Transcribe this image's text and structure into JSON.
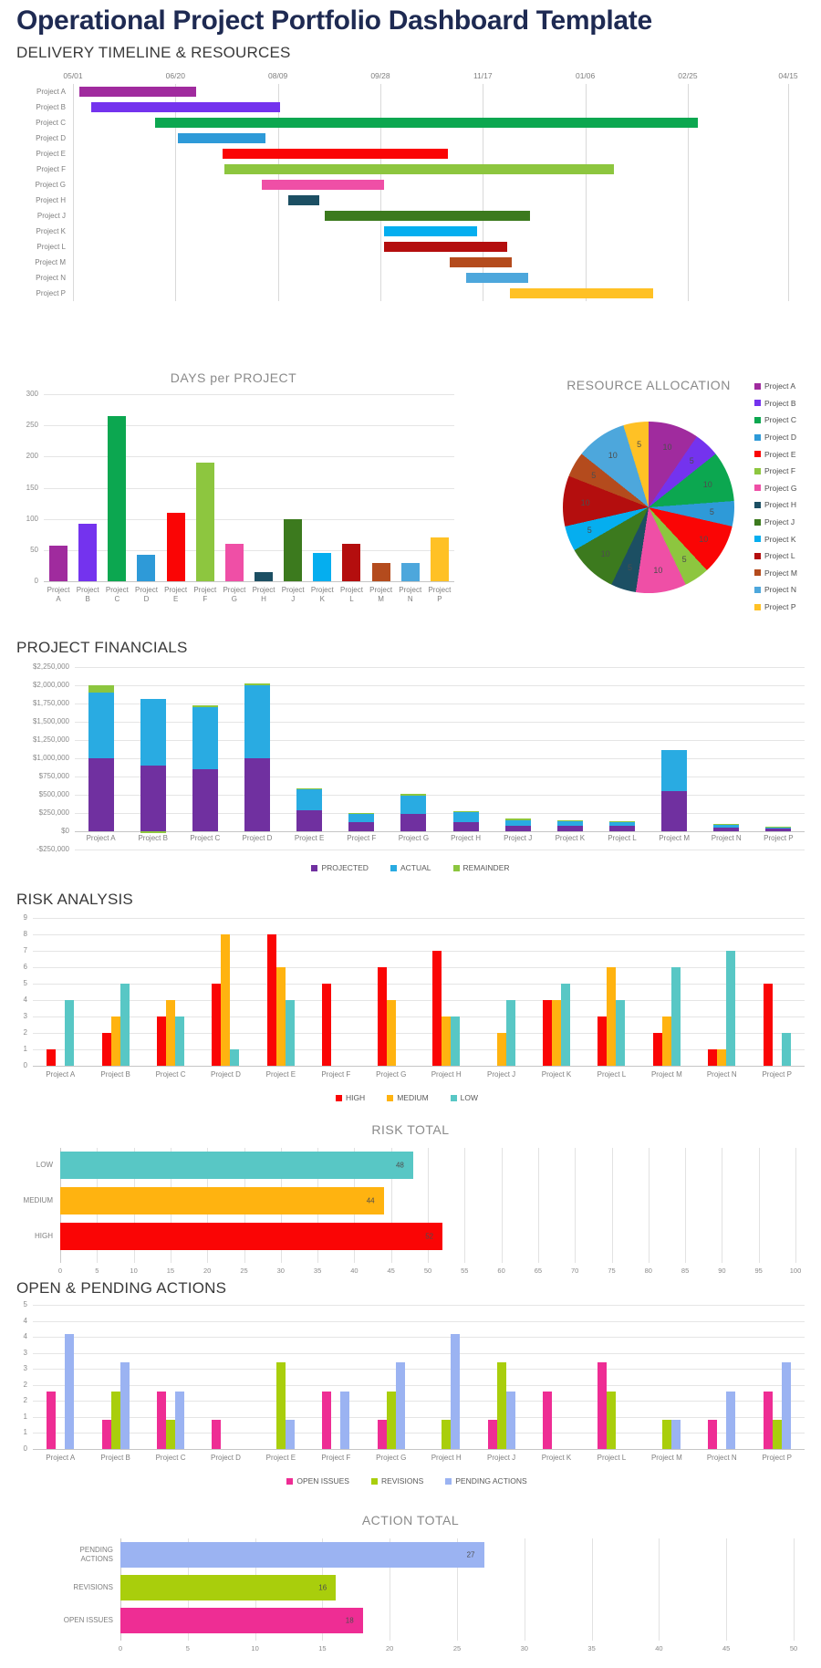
{
  "title": "Operational Project Portfolio Dashboard Template",
  "sections": {
    "delivery": {
      "heading": "DELIVERY TIMELINE & RESOURCES"
    },
    "financials": {
      "heading": "PROJECT FINANCIALS"
    },
    "risk": {
      "heading": "RISK ANALYSIS"
    },
    "actions": {
      "heading": "OPEN & PENDING ACTIONS"
    }
  },
  "palette": [
    "#A02B9E",
    "#7433EE",
    "#0CA750",
    "#2E9AD8",
    "#FA0505",
    "#8DC63F",
    "#EF4FA6",
    "#1C4F63",
    "#3C7A1E",
    "#05AEEF",
    "#B40E0E",
    "#B44B1D",
    "#4DA7DC",
    "#FFC125"
  ],
  "chart_data": [
    {
      "type": "gantt",
      "name": "delivery_timeline",
      "axis_dates": [
        "05/01",
        "06/20",
        "08/09",
        "09/28",
        "11/17",
        "01/06",
        "02/25",
        "04/15"
      ],
      "tick_days": [
        0,
        50,
        100,
        150,
        200,
        250,
        300,
        349
      ],
      "total_days": 357,
      "projects": [
        {
          "name": "Project A",
          "color": "#A02B9E",
          "start_day": 3,
          "duration_days": 57
        },
        {
          "name": "Project B",
          "color": "#7433EE",
          "start_day": 9,
          "duration_days": 92
        },
        {
          "name": "Project C",
          "color": "#0CA750",
          "start_day": 40,
          "duration_days": 265
        },
        {
          "name": "Project D",
          "color": "#2E9AD8",
          "start_day": 51,
          "duration_days": 43
        },
        {
          "name": "Project E",
          "color": "#FA0505",
          "start_day": 73,
          "duration_days": 110
        },
        {
          "name": "Project F",
          "color": "#8DC63F",
          "start_day": 74,
          "duration_days": 190
        },
        {
          "name": "Project G",
          "color": "#EF4FA6",
          "start_day": 92,
          "duration_days": 60
        },
        {
          "name": "Project H",
          "color": "#1C4F63",
          "start_day": 105,
          "duration_days": 15
        },
        {
          "name": "Project J",
          "color": "#3C7A1E",
          "start_day": 123,
          "duration_days": 100
        },
        {
          "name": "Project K",
          "color": "#05AEEF",
          "start_day": 152,
          "duration_days": 45
        },
        {
          "name": "Project L",
          "color": "#B40E0E",
          "start_day": 152,
          "duration_days": 60
        },
        {
          "name": "Project M",
          "color": "#B44B1D",
          "start_day": 184,
          "duration_days": 30
        },
        {
          "name": "Project N",
          "color": "#4DA7DC",
          "start_day": 192,
          "duration_days": 30
        },
        {
          "name": "Project P",
          "color": "#FFC125",
          "start_day": 213,
          "duration_days": 70
        }
      ]
    },
    {
      "type": "bar",
      "name": "days_per_project",
      "title": "DAYS per PROJECT",
      "categories": [
        "Project A",
        "Project B",
        "Project C",
        "Project D",
        "Project E",
        "Project F",
        "Project G",
        "Project H",
        "Project J",
        "Project K",
        "Project L",
        "Project M",
        "Project N",
        "Project P"
      ],
      "values": [
        57,
        92,
        265,
        43,
        110,
        190,
        60,
        15,
        100,
        45,
        60,
        30,
        30,
        70
      ],
      "colors": [
        "#A02B9E",
        "#7433EE",
        "#0CA750",
        "#2E9AD8",
        "#FA0505",
        "#8DC63F",
        "#EF4FA6",
        "#1C4F63",
        "#3C7A1E",
        "#05AEEF",
        "#B40E0E",
        "#B44B1D",
        "#4DA7DC",
        "#FFC125"
      ],
      "ylim": [
        0,
        300
      ],
      "ytick_step": 50,
      "grid": true
    },
    {
      "type": "pie",
      "name": "resource_allocation",
      "title": "RESOURCE ALLOCATION",
      "labels": [
        "Project A",
        "Project B",
        "Project C",
        "Project D",
        "Project E",
        "Project F",
        "Project G",
        "Project H",
        "Project J",
        "Project K",
        "Project L",
        "Project M",
        "Project N",
        "Project P"
      ],
      "values": [
        10,
        5,
        10,
        5,
        10,
        5,
        10,
        5,
        10,
        5,
        10,
        5,
        10,
        5
      ],
      "colors": [
        "#A02B9E",
        "#7433EE",
        "#0CA750",
        "#2E9AD8",
        "#FA0505",
        "#8DC63F",
        "#EF4FA6",
        "#1C4F63",
        "#3C7A1E",
        "#05AEEF",
        "#B40E0E",
        "#B44B1D",
        "#4DA7DC",
        "#FFC125"
      ],
      "legend_position": "right"
    },
    {
      "type": "stacked-bar",
      "name": "project_financials",
      "categories": [
        "Project A",
        "Project B",
        "Project C",
        "Project D",
        "Project E",
        "Project F",
        "Project G",
        "Project H",
        "Project J",
        "Project K",
        "Project L",
        "Project M",
        "Project N",
        "Project P"
      ],
      "series": [
        {
          "name": "PROJECTED",
          "color": "#7030A0",
          "values": [
            1000000,
            900000,
            850000,
            1000000,
            290000,
            130000,
            240000,
            120000,
            80000,
            75000,
            70000,
            550000,
            50000,
            40000
          ]
        },
        {
          "name": "ACTUAL",
          "color": "#29ABE2",
          "values": [
            900000,
            910000,
            850000,
            1000000,
            280000,
            110000,
            250000,
            140000,
            75000,
            65000,
            65000,
            560000,
            35000,
            20000
          ]
        },
        {
          "name": "REMAINDER",
          "color": "#8CC63F",
          "values": [
            100000,
            -20000,
            25000,
            25000,
            20000,
            10000,
            20000,
            15000,
            15000,
            10000,
            5000,
            0,
            10000,
            5000
          ]
        }
      ],
      "ylim": [
        -250000,
        2250000
      ],
      "ytick_step": 250000,
      "ytick_labels": [
        "$2,250,000",
        "$2,000,000",
        "$1,750,000",
        "$1,500,000",
        "$1,250,000",
        "$1,000,000",
        "$750,000",
        "$500,000",
        "$250,000",
        "$0",
        "-$250,000"
      ],
      "legend_position": "bottom"
    },
    {
      "type": "bar",
      "name": "risk_analysis",
      "categories": [
        "Project A",
        "Project B",
        "Project C",
        "Project D",
        "Project E",
        "Project F",
        "Project G",
        "Project H",
        "Project J",
        "Project K",
        "Project L",
        "Project M",
        "Project N",
        "Project P"
      ],
      "series": [
        {
          "name": "HIGH",
          "color": "#FA0505",
          "values": [
            1,
            2,
            3,
            5,
            8,
            5,
            6,
            7,
            0,
            4,
            3,
            2,
            1,
            5
          ]
        },
        {
          "name": "MEDIUM",
          "color": "#FFB310",
          "values": [
            0,
            3,
            4,
            8,
            6,
            0,
            4,
            3,
            2,
            4,
            6,
            3,
            1,
            0
          ]
        },
        {
          "name": "LOW",
          "color": "#58C7C5",
          "values": [
            4,
            5,
            3,
            1,
            4,
            0,
            0,
            3,
            4,
            5,
            4,
            6,
            7,
            2
          ]
        }
      ],
      "ylim": [
        0,
        9
      ],
      "ytick_labels": [
        "9",
        "8",
        "7",
        "6",
        "5",
        "4",
        "3",
        "2",
        "1",
        "0"
      ],
      "legend_position": "bottom"
    },
    {
      "type": "hbar",
      "name": "risk_total",
      "title": "RISK TOTAL",
      "categories": [
        "LOW",
        "MEDIUM",
        "HIGH"
      ],
      "values": [
        48,
        44,
        52
      ],
      "colors": [
        "#58C7C5",
        "#FFB310",
        "#FA0505"
      ],
      "xlim": [
        0,
        100
      ],
      "xtick_step": 5
    },
    {
      "type": "bar",
      "name": "open_pending_actions",
      "categories": [
        "Project A",
        "Project B",
        "Project C",
        "Project D",
        "Project E",
        "Project F",
        "Project G",
        "Project H",
        "Project J",
        "Project K",
        "Project L",
        "Project M",
        "Project N",
        "Project P"
      ],
      "series": [
        {
          "name": "OPEN ISSUES",
          "color": "#EE2D94",
          "values": [
            2,
            1,
            2,
            1,
            0,
            2,
            1,
            0,
            1,
            2,
            3,
            0,
            1,
            2
          ]
        },
        {
          "name": "REVISIONS",
          "color": "#A9CE0C",
          "values": [
            0,
            2,
            1,
            0,
            3,
            0,
            2,
            1,
            3,
            0,
            2,
            1,
            0,
            1
          ]
        },
        {
          "name": "PENDING ACTIONS",
          "color": "#9BB3F2",
          "values": [
            4,
            3,
            2,
            0,
            1,
            2,
            3,
            4,
            2,
            0,
            0,
            1,
            2,
            3
          ]
        }
      ],
      "ylim": [
        0,
        5
      ],
      "ytick_labels": [
        "5",
        "4",
        "4",
        "3",
        "3",
        "2",
        "2",
        "1",
        "1",
        "0"
      ],
      "legend_position": "bottom"
    },
    {
      "type": "hbar",
      "name": "action_total",
      "title": "ACTION TOTAL",
      "categories": [
        "PENDING ACTIONS",
        "REVISIONS",
        "OPEN ISSUES"
      ],
      "values": [
        27,
        16,
        18
      ],
      "colors": [
        "#9BB3F2",
        "#A9CE0C",
        "#EE2D94"
      ],
      "xlim": [
        0,
        50
      ],
      "xtick_step": 5
    }
  ]
}
